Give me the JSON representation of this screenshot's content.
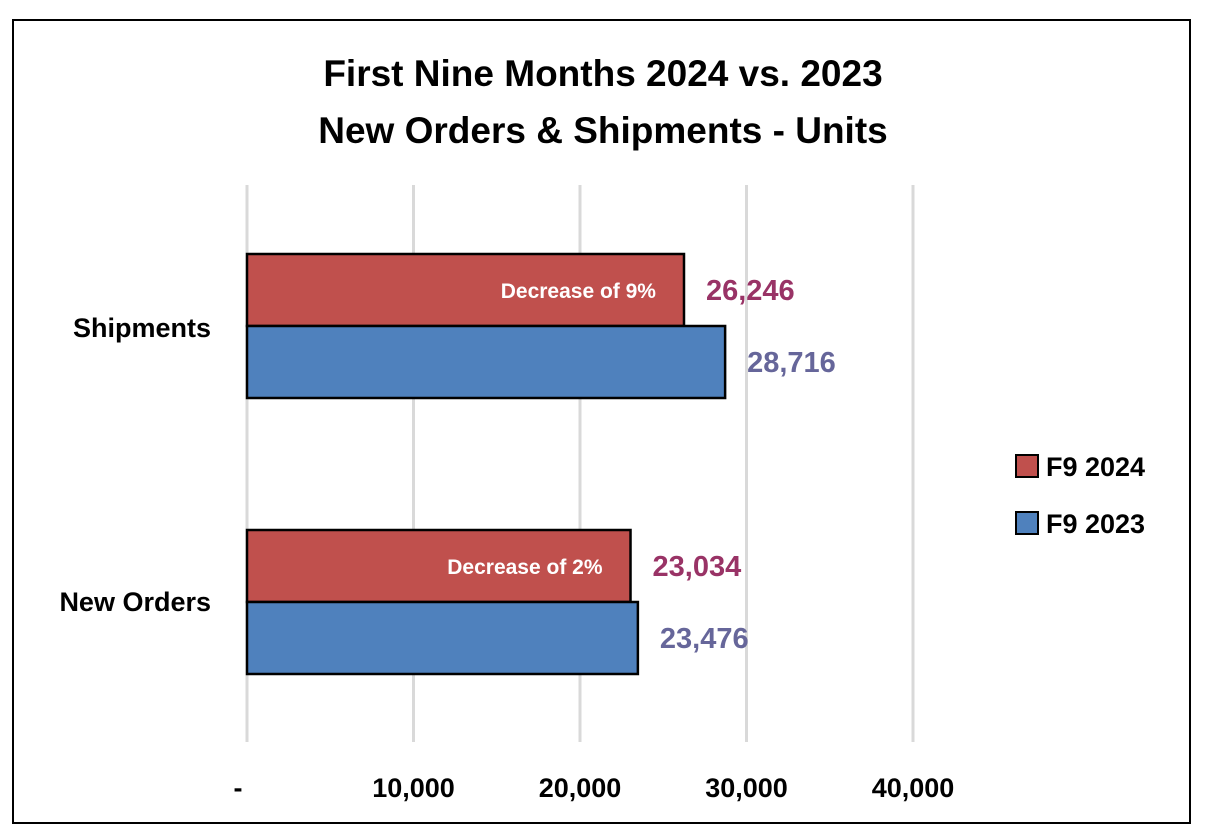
{
  "chart_data": {
    "type": "bar",
    "orientation": "horizontal",
    "title": [
      "First Nine Months 2024 vs. 2023",
      "New Orders & Shipments - Units"
    ],
    "categories": [
      "Shipments",
      "New Orders"
    ],
    "series": [
      {
        "name": "F9 2024",
        "color": "#c0504d",
        "label_color": "#993366",
        "values": [
          26246,
          23034
        ],
        "labels": [
          "26,246",
          "23,034"
        ]
      },
      {
        "name": "F9 2023",
        "color": "#4f81bd",
        "label_color": "#66669a",
        "values": [
          28716,
          23476
        ],
        "labels": [
          "28,716",
          "23,476"
        ]
      }
    ],
    "annotations": [
      "Decrease of 9%",
      "Decrease of 2%"
    ],
    "x_ticks": [
      0,
      10000,
      20000,
      30000,
      40000
    ],
    "x_tick_labels": [
      "-",
      "10,000",
      "20,000",
      "30,000",
      "40,000"
    ],
    "xlim": [
      0,
      40000
    ],
    "grid": true,
    "legend_position": "right"
  }
}
